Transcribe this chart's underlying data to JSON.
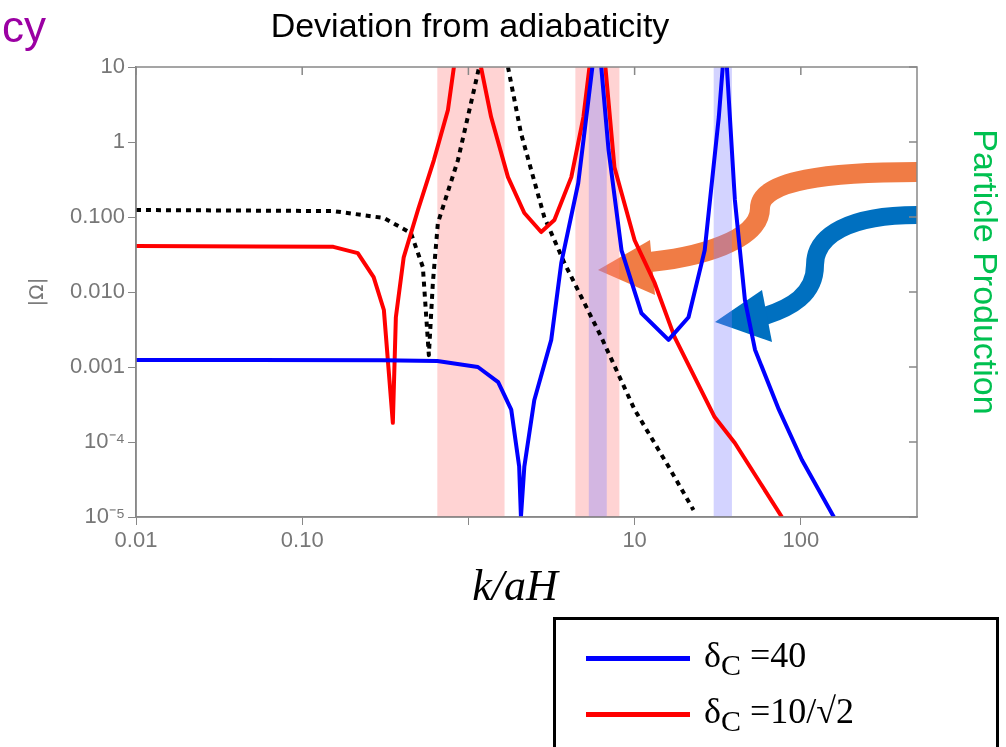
{
  "chart_data": {
    "type": "line",
    "title": "Deviation from adiabaticity",
    "xlabel": "k/aH",
    "ylabel": "|Ω|",
    "annotations": [
      "cy",
      "Particle Production"
    ],
    "log": "xy",
    "grid": false,
    "legend": "bottom right",
    "marker": "none",
    "xlim": [
      0.01,
      500
    ],
    "ylim": [
      1e-05,
      10
    ],
    "xticks": [
      {
        "value": 0.01,
        "label": "0.01"
      },
      {
        "value": 0.1,
        "label": "0.10"
      },
      {
        "value": 1,
        "label": null
      },
      10,
      100
    ],
    "yticks": [
      {
        "value": 1e-05,
        "label": "10⁻⁵"
      },
      {
        "value": 0.0001,
        "label": "10⁻⁴"
      },
      {
        "value": 0.001,
        "label": "0.001"
      },
      {
        "value": 0.01,
        "label": "0.010"
      },
      {
        "value": 0.1,
        "label": "0.100"
      },
      1,
      10
    ],
    "bands": [
      {
        "axis": "x",
        "from": 0.65,
        "to": 1.65,
        "color": "#ff8080"
      },
      {
        "axis": "x",
        "from": 4.4,
        "to": 8.1,
        "color": "#ff8080"
      },
      {
        "axis": "x",
        "from": 5.3,
        "to": 6.8,
        "color": "#8080ff"
      },
      {
        "axis": "x",
        "from": 29.9,
        "to": 38.5,
        "color": "#8080ff"
      }
    ],
    "series": [
      {
        "name": "δ$_{C}$ =40",
        "color": "#0000ff",
        "line_style": "solid",
        "x": [
          0.01,
          0.3,
          0.65,
          1.14,
          1.51,
          1.81,
          2.02,
          2.07,
          2.17,
          2.49,
          3.15,
          3.62,
          4.58,
          5.27,
          5.57,
          5.9,
          6.3,
          6.97,
          8.34,
          11.0,
          16.0,
          21.1,
          26.4,
          32.1,
          33.9,
          34.9,
          35.9,
          40.1,
          46.1,
          53,
          73.8,
          101.6,
          158
        ],
        "values": [
          0.00124,
          0.00123,
          0.0012,
          0.001,
          0.00063,
          0.00027,
          4.7e-05,
          1e-05,
          4.7e-05,
          0.00036,
          0.0023,
          0.0244,
          0.284,
          3.63,
          10,
          null,
          10,
          0.78,
          0.036,
          0.0052,
          0.0023,
          0.0046,
          0.036,
          2.15,
          10,
          null,
          10,
          0.169,
          0.0078,
          0.0017,
          0.00027,
          5.75e-05,
          1e-05
        ]
      },
      {
        "name": "δ$_{C}$ =10/√2",
        "color": "#ff0000",
        "line_style": "solid",
        "x": [
          0.01,
          0.154,
          0.216,
          0.269,
          0.31,
          0.351,
          0.366,
          0.408,
          0.497,
          0.62,
          0.753,
          0.818,
          1.0,
          1.19,
          1.37,
          1.73,
          2.17,
          2.74,
          3.29,
          4.16,
          4.92,
          5.35,
          6.0,
          6.67,
          7.56,
          10.0,
          13.2,
          17.4,
          30.3,
          40.1,
          76.9
        ],
        "values": [
          0.041,
          0.04,
          0.033,
          0.0158,
          0.00575,
          0.00018,
          0.0046,
          0.029,
          0.124,
          0.575,
          2.67,
          10,
          null,
          10,
          2.15,
          0.34,
          0.113,
          0.063,
          0.091,
          0.34,
          2.15,
          10,
          null,
          10,
          0.46,
          0.049,
          0.0132,
          0.0025,
          0.000215,
          9.7e-05,
          1e-05
        ]
      },
      {
        "color": "#000000",
        "line_style": "dotted",
        "x": [
          0.01,
          0.154,
          0.31,
          0.451,
          0.532,
          0.578,
          0.611,
          0.655,
          0.865,
          1.08,
          1.16,
          1.4,
          1.73,
          2.07,
          2.86,
          3.78,
          4.99,
          6.3,
          10,
          16.0,
          22.6
        ],
        "values": [
          0.124,
          0.12,
          0.097,
          0.061,
          0.0215,
          0.00144,
          0.0132,
          0.083,
          0.575,
          4.93,
          10,
          null,
          10,
          1.32,
          0.1,
          0.0244,
          0.0071,
          0.0025,
          0.00027,
          4.7e-05,
          1.24e-05
        ]
      }
    ]
  }
}
